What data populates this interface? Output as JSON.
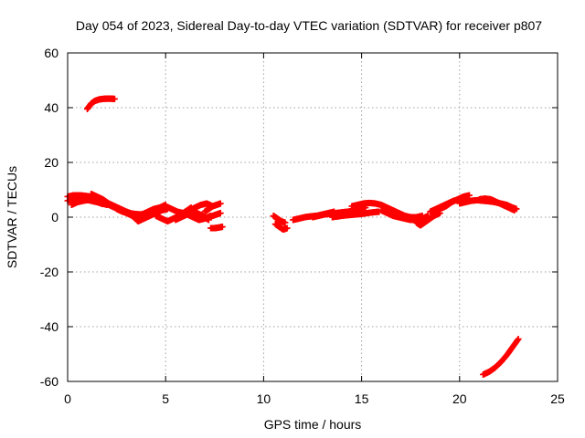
{
  "chart_data": {
    "type": "scatter",
    "title": "Day 054 of 2023, Sidereal Day-to-day VTEC variation (SDTVAR) for receiver p807",
    "xlabel": "GPS time / hours",
    "ylabel": "SDTVAR / TECUs",
    "xlim": [
      0,
      25
    ],
    "ylim": [
      -60,
      60
    ],
    "x_ticks": [
      0,
      5,
      10,
      15,
      20,
      25
    ],
    "x_tick_labels": [
      "0",
      "5",
      "10",
      "15",
      "20",
      "25"
    ],
    "y_ticks": [
      -60,
      -40,
      -20,
      0,
      20,
      40,
      60
    ],
    "y_tick_labels": [
      "-60",
      "-40",
      "-20",
      "0",
      "20",
      "40",
      "60"
    ],
    "grid": true,
    "marker": "plus",
    "series": [
      {
        "name": "SDTVAR",
        "color": "#ff0000",
        "arcs": [
          {
            "x": [
              1.0,
              1.2,
              1.4,
              1.6,
              1.8,
              2.0,
              2.2,
              2.4
            ],
            "y": [
              39.5,
              41.5,
              42.5,
              43.0,
              43.2,
              43.3,
              43.3,
              43.2
            ]
          },
          {
            "x": [
              0.0,
              0.3,
              0.6,
              0.9,
              1.2,
              1.5,
              1.8,
              2.1,
              2.4,
              2.7,
              3.0,
              3.3,
              3.6
            ],
            "y": [
              7.5,
              8.0,
              8.0,
              7.8,
              7.5,
              6.5,
              5.5,
              4.5,
              3.5,
              2.5,
              1.5,
              0.5,
              -1.5
            ]
          },
          {
            "x": [
              0.0,
              0.3,
              0.6,
              0.9,
              1.2,
              1.5,
              1.8
            ],
            "y": [
              6.0,
              6.5,
              7.0,
              6.5,
              6.0,
              5.5,
              4.8
            ]
          },
          {
            "x": [
              0.2,
              0.5,
              0.8,
              1.1,
              1.4,
              1.7,
              2.0
            ],
            "y": [
              4.5,
              5.5,
              6.0,
              6.3,
              6.0,
              5.2,
              4.5
            ]
          },
          {
            "x": [
              1.2,
              1.5,
              1.8,
              2.1,
              2.4,
              2.7,
              3.0,
              3.3,
              3.6,
              3.9
            ],
            "y": [
              8.5,
              7.5,
              6.5,
              5.0,
              4.0,
              3.0,
              2.0,
              1.2,
              0.5,
              0.0
            ]
          },
          {
            "x": [
              2.5,
              2.8,
              3.1,
              3.4,
              3.7,
              4.0,
              4.3
            ],
            "y": [
              3.0,
              2.0,
              1.5,
              1.2,
              1.0,
              1.2,
              1.5
            ]
          },
          {
            "x": [
              3.8,
              4.1,
              4.4,
              4.7,
              5.0
            ],
            "y": [
              1.0,
              2.0,
              3.0,
              3.5,
              4.5
            ]
          },
          {
            "x": [
              3.6,
              3.9,
              4.2,
              4.5,
              4.8,
              5.1
            ],
            "y": [
              -1.5,
              -0.5,
              0.5,
              1.5,
              2.5,
              3.0
            ]
          },
          {
            "x": [
              4.5,
              4.8,
              5.1,
              5.4,
              5.7,
              6.0,
              6.3
            ],
            "y": [
              0.5,
              -0.5,
              -1.5,
              -0.5,
              0.5,
              2.0,
              3.5
            ]
          },
          {
            "x": [
              5.0,
              5.3,
              5.6,
              5.9,
              6.2,
              6.5,
              6.8,
              7.1,
              7.4
            ],
            "y": [
              4.0,
              3.0,
              2.0,
              1.5,
              2.5,
              3.5,
              4.5,
              5.0,
              4.0
            ]
          },
          {
            "x": [
              5.5,
              5.8,
              6.1,
              6.4,
              6.7,
              7.0,
              7.3
            ],
            "y": [
              -1.0,
              0.0,
              1.0,
              0.0,
              -1.0,
              -0.5,
              0.5
            ]
          },
          {
            "x": [
              6.0,
              6.3,
              6.6,
              6.9,
              7.2
            ],
            "y": [
              1.0,
              2.0,
              1.5,
              0.5,
              -1.0
            ]
          },
          {
            "x": [
              7.0,
              7.2,
              7.4,
              7.6,
              7.8
            ],
            "y": [
              2.0,
              3.0,
              4.0,
              4.5,
              5.0
            ]
          },
          {
            "x": [
              7.0,
              7.2,
              7.4,
              7.6,
              7.8
            ],
            "y": [
              -0.5,
              0.0,
              0.5,
              1.0,
              1.5
            ]
          },
          {
            "x": [
              7.3,
              7.5,
              7.7,
              7.9
            ],
            "y": [
              -4.0,
              -4.0,
              -3.8,
              -3.5
            ]
          },
          {
            "x": [
              10.5,
              10.7,
              10.9,
              11.1
            ],
            "y": [
              0.5,
              -0.5,
              -1.5,
              -2.0
            ]
          },
          {
            "x": [
              10.6,
              10.8,
              11.0,
              11.2
            ],
            "y": [
              -2.5,
              -3.5,
              -4.5,
              -4.0
            ]
          },
          {
            "x": [
              11.5,
              11.8,
              12.1,
              12.4,
              12.7,
              13.0,
              13.3,
              13.6
            ],
            "y": [
              -1.0,
              -0.5,
              0.0,
              0.3,
              0.5,
              1.0,
              1.5,
              2.0
            ]
          },
          {
            "x": [
              12.5,
              12.8,
              13.1,
              13.4,
              13.7,
              14.0,
              14.3,
              14.6,
              14.9,
              15.2
            ],
            "y": [
              0.0,
              0.5,
              1.0,
              1.2,
              1.5,
              1.8,
              2.0,
              2.5,
              3.0,
              3.5
            ]
          },
          {
            "x": [
              13.5,
              13.8,
              14.1,
              14.4,
              14.7,
              15.0,
              15.3,
              15.6,
              15.9
            ],
            "y": [
              0.0,
              0.3,
              0.6,
              0.8,
              1.0,
              1.2,
              1.5,
              1.8,
              2.0
            ]
          },
          {
            "x": [
              14.5,
              14.8,
              15.1,
              15.4,
              15.7,
              16.0,
              16.3,
              16.6,
              16.9,
              17.2,
              17.5,
              17.8,
              18.1
            ],
            "y": [
              4.0,
              4.5,
              5.0,
              5.2,
              5.0,
              4.5,
              3.5,
              2.5,
              1.5,
              0.5,
              0.0,
              0.0,
              0.5
            ]
          },
          {
            "x": [
              16.0,
              16.3,
              16.6,
              16.9,
              17.2,
              17.5,
              17.8,
              18.1,
              18.4
            ],
            "y": [
              2.5,
              1.5,
              0.5,
              0.0,
              -0.5,
              -1.0,
              -1.0,
              -0.5,
              0.5
            ]
          },
          {
            "x": [
              17.5,
              17.8,
              18.1,
              18.4,
              18.7,
              19.0
            ],
            "y": [
              -0.5,
              -1.0,
              -2.0,
              -1.0,
              0.5,
              1.5
            ]
          },
          {
            "x": [
              17.8,
              18.0,
              18.2,
              18.4
            ],
            "y": [
              -2.0,
              -3.0,
              -2.0,
              -1.0
            ]
          },
          {
            "x": [
              18.5,
              18.8,
              19.1,
              19.4,
              19.7,
              20.0,
              20.3
            ],
            "y": [
              2.0,
              3.0,
              4.0,
              5.0,
              6.0,
              6.5,
              7.0
            ]
          },
          {
            "x": [
              19.0,
              19.3,
              19.6,
              19.9,
              20.2,
              20.5
            ],
            "y": [
              3.0,
              4.0,
              5.5,
              6.5,
              7.5,
              8.0
            ]
          },
          {
            "x": [
              20.0,
              20.3,
              20.6,
              20.9,
              21.2,
              21.5,
              21.8,
              22.1,
              22.4,
              22.7,
              22.9
            ],
            "y": [
              5.0,
              5.5,
              6.0,
              6.2,
              6.0,
              5.8,
              5.5,
              5.0,
              4.5,
              3.5,
              3.0
            ]
          },
          {
            "x": [
              21.0,
              21.3,
              21.6,
              21.9,
              22.2,
              22.5,
              22.8
            ],
            "y": [
              6.5,
              6.8,
              6.5,
              5.5,
              4.5,
              3.5,
              2.5
            ]
          },
          {
            "x": [
              21.2,
              21.5,
              21.8,
              22.1,
              22.4,
              22.7,
              23.0
            ],
            "y": [
              -57.5,
              -56.5,
              -55.0,
              -53.0,
              -50.5,
              -47.5,
              -44.5
            ]
          }
        ]
      }
    ]
  }
}
